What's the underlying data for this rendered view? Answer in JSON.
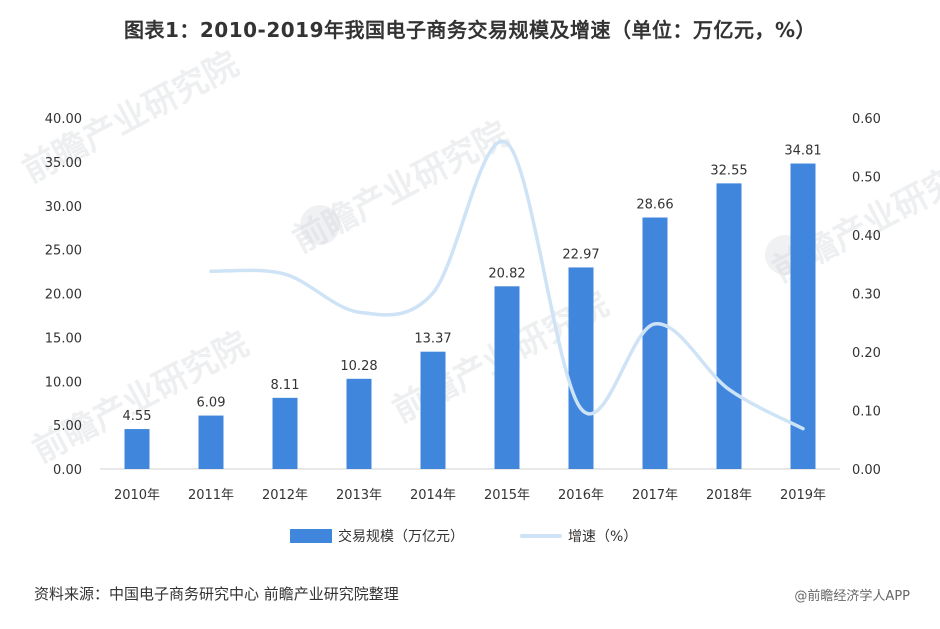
{
  "title": "图表1：2010-2019年我国电子商务交易规模及增速（单位：万亿元，%）",
  "watermark": {
    "text": "前瞻产业研究院"
  },
  "chart_data": {
    "type": "bar",
    "categories": [
      "2010年",
      "2011年",
      "2012年",
      "2013年",
      "2014年",
      "2015年",
      "2016年",
      "2017年",
      "2018年",
      "2019年"
    ],
    "series": [
      {
        "name": "交易规模（万亿元）",
        "kind": "bar",
        "axis": "left",
        "color": "#3f86dc",
        "values": [
          4.55,
          6.09,
          8.11,
          10.28,
          13.37,
          20.82,
          22.97,
          28.66,
          32.55,
          34.81
        ],
        "labels": [
          "4.55",
          "6.09",
          "8.11",
          "10.28",
          "13.37",
          "20.82",
          "22.97",
          "28.66",
          "32.55",
          "34.81"
        ]
      },
      {
        "name": "增速（%）",
        "kind": "line",
        "axis": "right",
        "color": "#cfe3f6",
        "values": [
          null,
          0.338,
          0.333,
          0.268,
          0.301,
          0.557,
          0.103,
          0.248,
          0.136,
          0.069
        ]
      }
    ],
    "y_left": {
      "min": 0,
      "max": 40,
      "step": 5,
      "ticks": [
        "0.00",
        "5.00",
        "10.00",
        "15.00",
        "20.00",
        "25.00",
        "30.00",
        "35.00",
        "40.00"
      ]
    },
    "y_right": {
      "min": 0,
      "max": 0.6,
      "step": 0.1,
      "ticks": [
        "0.00",
        "0.10",
        "0.20",
        "0.30",
        "0.40",
        "0.50",
        "0.60"
      ]
    },
    "grid": false,
    "legend_position": "bottom"
  },
  "legend": {
    "bar_label": "交易规模（万亿元）",
    "line_label": "增速（%）"
  },
  "footer": {
    "source": "资料来源：中国电子商务研究中心 前瞻产业研究院整理",
    "brand": "@前瞻经济学人APP"
  }
}
